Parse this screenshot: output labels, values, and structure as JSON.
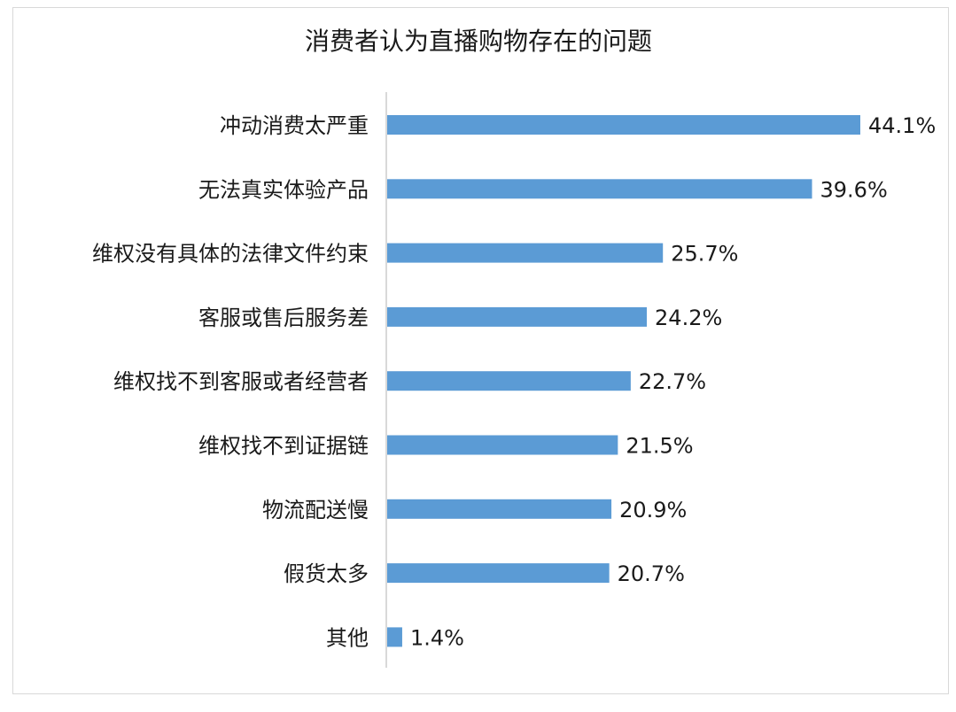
{
  "chart_data": {
    "type": "bar",
    "orientation": "horizontal",
    "title": "消费者认为直播购物存在的问题",
    "categories": [
      "冲动消费太严重",
      "无法真实体验产品",
      "维权没有具体的法律文件约束",
      "客服或售后服务差",
      "维权找不到客服或者经营者",
      "维权找不到证据链",
      "物流配送慢",
      "假货太多",
      "其他"
    ],
    "values": [
      44.1,
      39.6,
      25.7,
      24.2,
      22.7,
      21.5,
      20.9,
      20.7,
      1.4
    ],
    "data_labels": [
      "44.1%",
      "39.6%",
      "25.7%",
      "24.2%",
      "22.7%",
      "21.5%",
      "20.9%",
      "20.7%",
      "1.4%"
    ],
    "unit": "%",
    "xlim": [
      0,
      44.1
    ],
    "grid": false,
    "legend": "none",
    "bar_color": "#5b9bd5",
    "axis_color": "#d9d9d9"
  }
}
